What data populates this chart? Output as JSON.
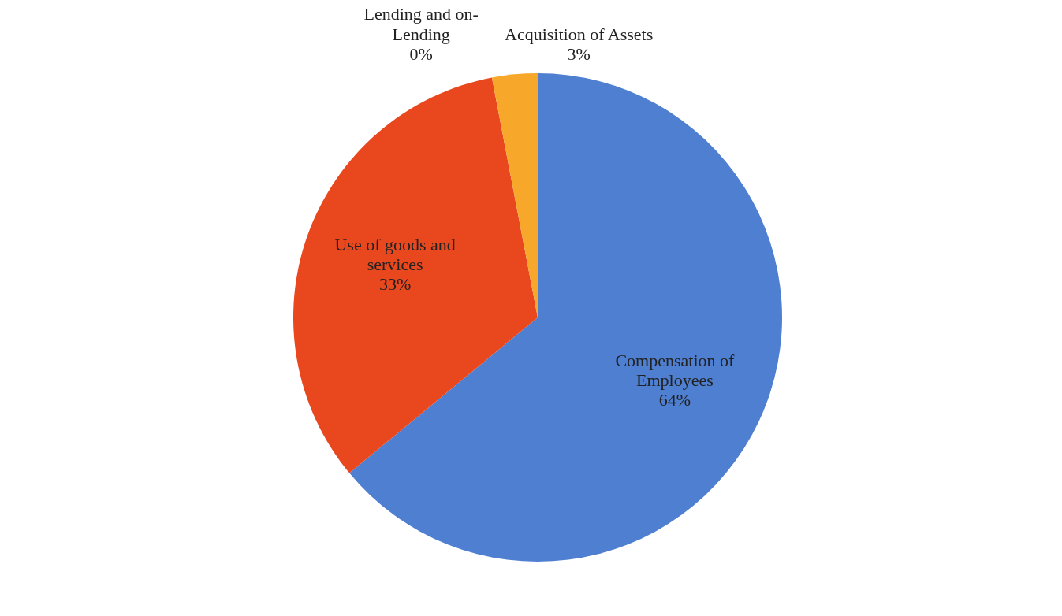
{
  "chart_data": {
    "type": "pie",
    "categories": [
      "Compensation of Employees",
      "Use of goods and services",
      "Lending and on-Lending",
      "Acquisition of Assets"
    ],
    "values": [
      64,
      33,
      0,
      3
    ],
    "value_labels": [
      "64%",
      "33%",
      "0%",
      "3%"
    ],
    "colors": [
      "#4f7fd1",
      "#e9481f",
      "#a5a5a5",
      "#f7a72a"
    ]
  }
}
